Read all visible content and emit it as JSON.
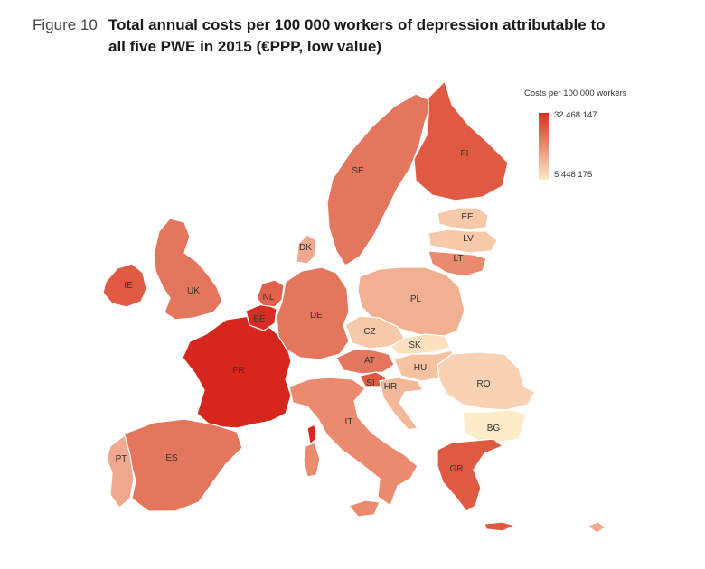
{
  "figure": {
    "label": "Figure 10",
    "title": "Total annual costs per 100 000 workers of depression attributable to all five PWE in 2015 (€PPP, low value)"
  },
  "legend": {
    "title": "Costs per 100 000 workers",
    "max_label": "32 468 147",
    "min_label": "5 448 175",
    "color_high": "#d7301f",
    "color_low": "#fdebc8"
  },
  "countries": [
    {
      "code": "IE",
      "color": "#e05a42"
    },
    {
      "code": "UK",
      "color": "#e4765e"
    },
    {
      "code": "FR",
      "color": "#d7261c"
    },
    {
      "code": "BE",
      "color": "#d82c22"
    },
    {
      "code": "NL",
      "color": "#e1614a"
    },
    {
      "code": "DE",
      "color": "#e4765e"
    },
    {
      "code": "DK",
      "color": "#f0a88e"
    },
    {
      "code": "SE",
      "color": "#e4765e"
    },
    {
      "code": "FI",
      "color": "#e05a42"
    },
    {
      "code": "EE",
      "color": "#f6c9a9"
    },
    {
      "code": "LV",
      "color": "#f6c9a9"
    },
    {
      "code": "LT",
      "color": "#ea8a6e"
    },
    {
      "code": "PL",
      "color": "#f1b092"
    },
    {
      "code": "CZ",
      "color": "#f6c9a9"
    },
    {
      "code": "SK",
      "color": "#fbe1c0"
    },
    {
      "code": "AT",
      "color": "#e4765e"
    },
    {
      "code": "HU",
      "color": "#f6c2a2"
    },
    {
      "code": "SI",
      "color": "#e05a42"
    },
    {
      "code": "HR",
      "color": "#f3b898"
    },
    {
      "code": "RO",
      "color": "#f8d2b2"
    },
    {
      "code": "BG",
      "color": "#fdecc7"
    },
    {
      "code": "IT",
      "color": "#ea8a6e"
    },
    {
      "code": "ES",
      "color": "#e4765e"
    },
    {
      "code": "PT",
      "color": "#f0a88e"
    },
    {
      "code": "GR",
      "color": "#e05a42"
    }
  ]
}
